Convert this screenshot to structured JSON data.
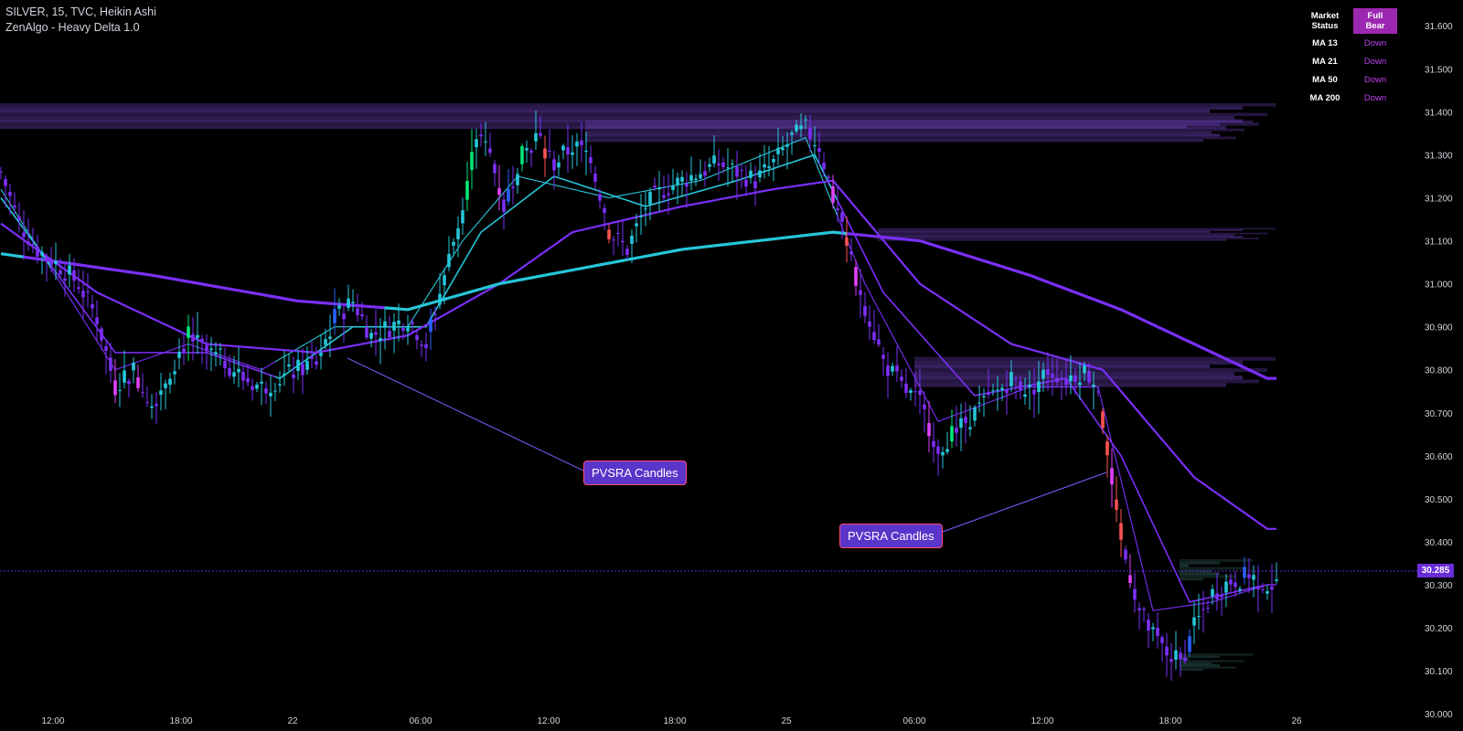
{
  "legend": {
    "line1": "SILVER, 15, TVC, Heikin Ashi",
    "line2": "ZenAlgo - Heavy Delta 1.0"
  },
  "status_table": {
    "header_label": "Market Status",
    "header_value": "Full Bear",
    "rows": [
      {
        "label": "MA 13",
        "value": "Down"
      },
      {
        "label": "MA 21",
        "value": "Down"
      },
      {
        "label": "MA 50",
        "value": "Down"
      },
      {
        "label": "MA 200",
        "value": "Down"
      }
    ]
  },
  "annotations": [
    "PVSRA Candles",
    "PVSRA Candles"
  ],
  "current_price": "30.285",
  "colors": {
    "bull": "#26c6da",
    "bear": "#7b2ff7",
    "climax_bear": "#ff5252",
    "climax_bull": "#00e676",
    "vector_bear": "#e040fb",
    "vector_bull": "#2962ff",
    "ma_fast": "#26c6da",
    "ma_slow": "#7b2ff7"
  },
  "chart_data": {
    "type": "candlestick",
    "symbol": "SILVER",
    "timeframe": "15",
    "ylim": [
      29.96,
      31.66
    ],
    "yticks": [
      "30.000",
      "30.100",
      "30.200",
      "30.300",
      "30.400",
      "30.500",
      "30.600",
      "30.700",
      "30.800",
      "30.900",
      "31.000",
      "31.100",
      "31.200",
      "31.300",
      "31.400",
      "31.500",
      "31.600"
    ],
    "xticks": [
      "12:00",
      "18:00",
      "22",
      "06:00",
      "12:00",
      "18:00",
      "25",
      "06:00",
      "12:00",
      "18:00",
      "26"
    ],
    "price_anchors": [
      [
        0,
        31.26
      ],
      [
        4,
        31.14
      ],
      [
        8,
        31.08
      ],
      [
        13,
        31.04
      ],
      [
        17,
        31.0
      ],
      [
        21,
        30.92
      ],
      [
        25,
        30.76
      ],
      [
        29,
        30.8
      ],
      [
        33,
        30.72
      ],
      [
        37,
        30.8
      ],
      [
        41,
        30.88
      ],
      [
        45,
        30.84
      ],
      [
        49,
        30.82
      ],
      [
        53,
        30.78
      ],
      [
        57,
        30.76
      ],
      [
        61,
        30.78
      ],
      [
        65,
        30.8
      ],
      [
        69,
        30.82
      ],
      [
        73,
        30.92
      ],
      [
        77,
        30.96
      ],
      [
        81,
        30.88
      ],
      [
        85,
        30.9
      ],
      [
        89,
        30.92
      ],
      [
        93,
        30.86
      ],
      [
        97,
        31.02
      ],
      [
        101,
        31.18
      ],
      [
        104,
        31.35
      ],
      [
        107,
        31.3
      ],
      [
        110,
        31.18
      ],
      [
        113,
        31.28
      ],
      [
        117,
        31.34
      ],
      [
        121,
        31.28
      ],
      [
        125,
        31.32
      ],
      [
        129,
        31.3
      ],
      [
        133,
        31.12
      ],
      [
        137,
        31.08
      ],
      [
        141,
        31.18
      ],
      [
        145,
        31.22
      ],
      [
        149,
        31.24
      ],
      [
        153,
        31.26
      ],
      [
        157,
        31.28
      ],
      [
        161,
        31.26
      ],
      [
        165,
        31.24
      ],
      [
        169,
        31.28
      ],
      [
        173,
        31.34
      ],
      [
        176,
        31.36
      ],
      [
        179,
        31.32
      ],
      [
        182,
        31.2
      ],
      [
        185,
        31.08
      ],
      [
        189,
        30.95
      ],
      [
        193,
        30.82
      ],
      [
        197,
        30.76
      ],
      [
        201,
        30.72
      ],
      [
        205,
        30.62
      ],
      [
        209,
        30.66
      ],
      [
        213,
        30.7
      ],
      [
        217,
        30.74
      ],
      [
        221,
        30.78
      ],
      [
        225,
        30.75
      ],
      [
        229,
        30.8
      ],
      [
        233,
        30.78
      ],
      [
        237,
        30.8
      ],
      [
        240,
        30.76
      ],
      [
        243,
        30.52
      ],
      [
        246,
        30.36
      ],
      [
        249,
        30.24
      ],
      [
        252,
        30.18
      ],
      [
        255,
        30.14
      ],
      [
        258,
        30.12
      ],
      [
        261,
        30.2
      ],
      [
        265,
        30.28
      ],
      [
        269,
        30.31
      ],
      [
        273,
        30.32
      ],
      [
        277,
        30.3
      ]
    ],
    "moving_averages": [
      {
        "name": "MA 13",
        "values": [
          [
            0,
            31.22
          ],
          [
            25,
            30.8
          ],
          [
            41,
            30.86
          ],
          [
            57,
            30.8
          ],
          [
            73,
            30.9
          ],
          [
            89,
            30.9
          ],
          [
            101,
            31.1
          ],
          [
            113,
            31.25
          ],
          [
            133,
            31.2
          ],
          [
            153,
            31.24
          ],
          [
            176,
            31.34
          ],
          [
            189,
            31.0
          ],
          [
            205,
            30.68
          ],
          [
            225,
            30.76
          ],
          [
            240,
            30.76
          ],
          [
            252,
            30.24
          ],
          [
            265,
            30.26
          ],
          [
            277,
            30.3
          ]
        ]
      },
      {
        "name": "MA 21",
        "values": [
          [
            0,
            31.2
          ],
          [
            25,
            30.84
          ],
          [
            45,
            30.84
          ],
          [
            61,
            30.78
          ],
          [
            77,
            30.9
          ],
          [
            93,
            30.9
          ],
          [
            105,
            31.12
          ],
          [
            121,
            31.25
          ],
          [
            141,
            31.18
          ],
          [
            161,
            31.24
          ],
          [
            178,
            31.3
          ],
          [
            193,
            30.98
          ],
          [
            213,
            30.74
          ],
          [
            233,
            30.78
          ],
          [
            245,
            30.6
          ],
          [
            260,
            30.26
          ],
          [
            277,
            30.3
          ]
        ]
      },
      {
        "name": "MA 50",
        "values": [
          [
            0,
            31.14
          ],
          [
            21,
            30.98
          ],
          [
            45,
            30.86
          ],
          [
            69,
            30.84
          ],
          [
            89,
            30.88
          ],
          [
            109,
            31.0
          ],
          [
            125,
            31.12
          ],
          [
            149,
            31.18
          ],
          [
            169,
            31.22
          ],
          [
            182,
            31.24
          ],
          [
            201,
            31.0
          ],
          [
            221,
            30.86
          ],
          [
            241,
            30.8
          ],
          [
            261,
            30.55
          ],
          [
            277,
            30.43
          ]
        ]
      },
      {
        "name": "MA 200",
        "values": [
          [
            0,
            31.07
          ],
          [
            33,
            31.02
          ],
          [
            65,
            30.96
          ],
          [
            89,
            30.94
          ],
          [
            109,
            31.0
          ],
          [
            129,
            31.04
          ],
          [
            149,
            31.08
          ],
          [
            182,
            31.12
          ],
          [
            201,
            31.1
          ],
          [
            225,
            31.02
          ],
          [
            245,
            30.94
          ],
          [
            265,
            30.84
          ],
          [
            277,
            30.78
          ]
        ]
      }
    ],
    "volume_profile_zones": [
      {
        "price_low": 31.36,
        "price_high": 31.42
      },
      {
        "price_low": 31.33,
        "price_high": 31.38
      },
      {
        "price_low": 31.1,
        "price_high": 31.13
      },
      {
        "price_low": 30.76,
        "price_high": 30.83
      },
      {
        "price_low": 30.31,
        "price_high": 30.36
      },
      {
        "price_low": 30.1,
        "price_high": 30.14
      }
    ]
  }
}
